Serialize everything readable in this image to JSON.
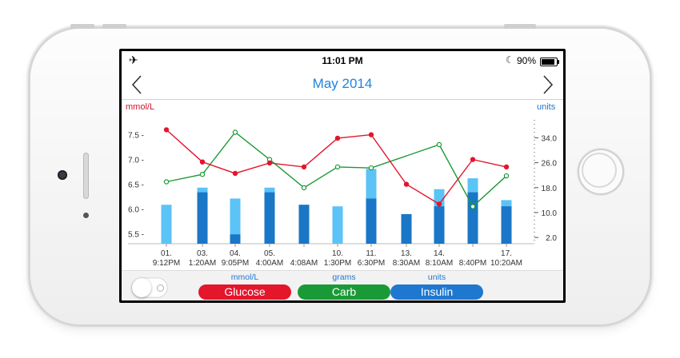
{
  "status_bar": {
    "time": "11:01 PM",
    "battery_percent": "90%",
    "battery_level": 0.9,
    "icons": [
      "airplane-icon",
      "moon-icon",
      "battery-icon"
    ]
  },
  "nav": {
    "title": "May 2014",
    "prev_icon": "chevron-left-icon",
    "next_icon": "chevron-right-icon"
  },
  "chart_data": {
    "type": "bar",
    "left_axis_unit": "mmol/L",
    "right_axis_unit": "units",
    "left_ticks": [
      "5.5",
      "6.0",
      "6.5",
      "7.0",
      "7.5"
    ],
    "right_ticks": [
      "2.0",
      "10.0",
      "18.0",
      "26.0",
      "34.0"
    ],
    "left_range": [
      5.3,
      8.0
    ],
    "right_range": [
      0,
      42
    ],
    "categories": [
      {
        "day": "01.",
        "time": "9:12PM"
      },
      {
        "day": "03.",
        "time": "1:20AM"
      },
      {
        "day": "04.",
        "time": "9:05PM"
      },
      {
        "day": "05.",
        "time": "4:00AM"
      },
      {
        "day": "",
        "time": "4:08AM"
      },
      {
        "day": "10.",
        "time": "1:30PM"
      },
      {
        "day": "11.",
        "time": "6:30PM"
      },
      {
        "day": "13.",
        "time": "8:30AM"
      },
      {
        "day": "14.",
        "time": "8:10AM"
      },
      {
        "day": "",
        "time": "8:40PM"
      },
      {
        "day": "17.",
        "time": "10:20AM"
      }
    ],
    "series": [
      {
        "name": "Glucose",
        "unit": "mmol/L",
        "type": "line",
        "color": "#e3162c",
        "values": [
          7.6,
          6.95,
          6.72,
          6.93,
          6.85,
          7.43,
          7.5,
          6.5,
          6.1,
          7.0,
          6.85
        ]
      },
      {
        "name": "Carb",
        "unit": "grams",
        "type": "line",
        "color": "#1a9a36",
        "values": [
          6.55,
          6.7,
          7.55,
          7.0,
          6.43,
          6.85,
          6.83,
          null,
          7.3,
          6.05,
          6.67
        ]
      },
      {
        "name": "Insulin",
        "unit": "units",
        "type": "bar",
        "light_color": "#5bc3f6",
        "dark_color": "#1a76c6",
        "totals": [
          12.5,
          18.0,
          14.5,
          18.0,
          12.5,
          12.0,
          24.0,
          9.5,
          17.5,
          21.0,
          14.0
        ],
        "dark_part": [
          0,
          16.5,
          3.0,
          16.5,
          12.5,
          0,
          14.5,
          9.5,
          12.0,
          16.5,
          12.0
        ]
      }
    ]
  },
  "footer": {
    "toggle_on": false,
    "legend": [
      {
        "unit": "mmol/L",
        "label": "Glucose",
        "color": "#e3162c"
      },
      {
        "unit": "grams",
        "label": "Carb",
        "color": "#1a9a36"
      },
      {
        "unit": "units",
        "label": "Insulin",
        "color": "#1f78d0"
      }
    ]
  }
}
